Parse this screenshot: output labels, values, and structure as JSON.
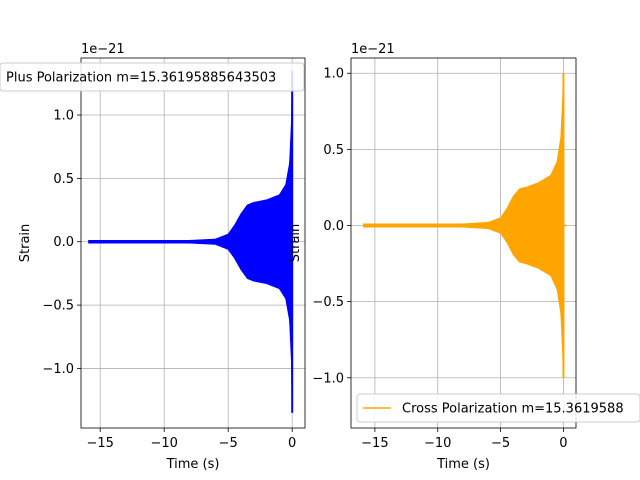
{
  "chart_data": [
    {
      "type": "line",
      "title": "",
      "xlabel": "Time (s)",
      "ylabel": "Strain",
      "offset_text": "1e−21",
      "xlim": [
        -16.5,
        1.0
      ],
      "ylim": [
        -1.47,
        1.45
      ],
      "x_ticks": [
        -15,
        -10,
        -5,
        0
      ],
      "x_tick_labels": [
        "−15",
        "−10",
        "−5",
        "0"
      ],
      "y_ticks": [
        -1.0,
        -0.5,
        0.0,
        0.5,
        1.0
      ],
      "y_tick_labels": [
        "−1.0",
        "−0.5",
        "0.0",
        "0.5",
        "1.0"
      ],
      "grid": true,
      "legend_position": "top-center",
      "series": [
        {
          "name": "Plus Polarization m=15.36195885643503",
          "color": "#0000ff",
          "envelope": [
            {
              "t": -15.9,
              "amp": 0.01
            },
            {
              "t": -8.0,
              "amp": 0.01
            },
            {
              "t": -6.0,
              "amp": 0.02
            },
            {
              "t": -5.0,
              "amp": 0.06
            },
            {
              "t": -4.5,
              "amp": 0.13
            },
            {
              "t": -4.0,
              "amp": 0.22
            },
            {
              "t": -3.5,
              "amp": 0.29
            },
            {
              "t": -3.0,
              "amp": 0.31
            },
            {
              "t": -2.0,
              "amp": 0.33
            },
            {
              "t": -1.0,
              "amp": 0.37
            },
            {
              "t": -0.5,
              "amp": 0.45
            },
            {
              "t": -0.2,
              "amp": 0.62
            },
            {
              "t": -0.05,
              "amp": 0.95
            },
            {
              "t": 0.0,
              "amp": 1.35
            }
          ]
        }
      ]
    },
    {
      "type": "line",
      "title": "",
      "xlabel": "Time (s)",
      "ylabel": "Strain",
      "offset_text": "1e−21",
      "xlim": [
        -16.9,
        1.0
      ],
      "ylim": [
        -1.33,
        1.1
      ],
      "x_ticks": [
        -15,
        -10,
        -5,
        0
      ],
      "x_tick_labels": [
        "−15",
        "−10",
        "−5",
        "0"
      ],
      "y_ticks": [
        -1.0,
        -0.5,
        0.0,
        0.5,
        1.0
      ],
      "y_tick_labels": [
        "−1.0",
        "−0.5",
        "0.0",
        "0.5",
        "1.0"
      ],
      "grid": true,
      "legend_position": "bottom",
      "series": [
        {
          "name": "Cross Polarization m=15.3619588",
          "color": "#ffa500",
          "envelope": [
            {
              "t": -15.9,
              "amp": 0.01
            },
            {
              "t": -8.0,
              "amp": 0.01
            },
            {
              "t": -6.0,
              "amp": 0.02
            },
            {
              "t": -5.0,
              "amp": 0.05
            },
            {
              "t": -4.5,
              "amp": 0.11
            },
            {
              "t": -4.0,
              "amp": 0.19
            },
            {
              "t": -3.5,
              "amp": 0.24
            },
            {
              "t": -3.0,
              "amp": 0.25
            },
            {
              "t": -2.0,
              "amp": 0.28
            },
            {
              "t": -1.0,
              "amp": 0.33
            },
            {
              "t": -0.5,
              "amp": 0.42
            },
            {
              "t": -0.2,
              "amp": 0.58
            },
            {
              "t": -0.05,
              "amp": 0.85
            },
            {
              "t": 0.0,
              "amp": 1.0
            }
          ]
        }
      ]
    }
  ]
}
